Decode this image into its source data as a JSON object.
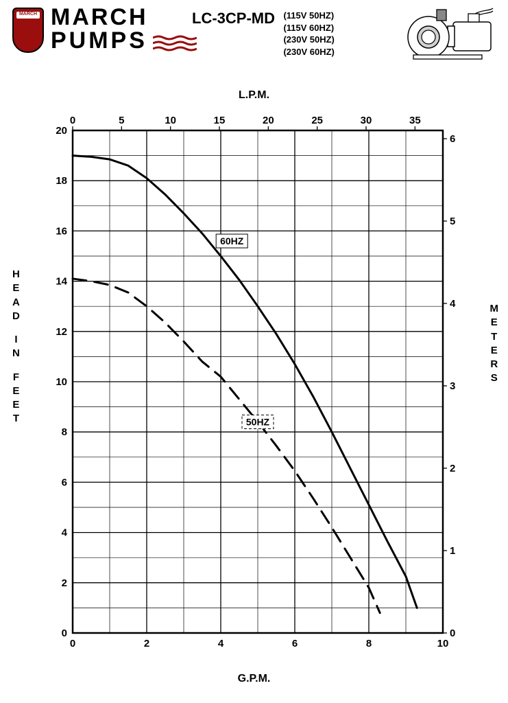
{
  "brand": {
    "line1": "MARCH",
    "line2": "PUMPS",
    "badge_label": "MARCH",
    "wave_color": "#9a0e0e",
    "badge_color": "#9a0e0e"
  },
  "model": "LC-3CP-MD",
  "variants": [
    "(115V 50HZ)",
    "(115V 60HZ)",
    "(230V 50HZ)",
    "(230V 60HZ)"
  ],
  "chart": {
    "type": "line",
    "background_color": "#ffffff",
    "border_color": "#000000",
    "grid_major_color": "#000000",
    "grid_minor_color": "#000000",
    "x_bottom": {
      "label": "G.P.M.",
      "min": 0,
      "max": 10,
      "major_step": 2,
      "minor_step": 1,
      "ticks": [
        0,
        2,
        4,
        6,
        8,
        10
      ],
      "label_fontsize": 16
    },
    "x_top": {
      "label": "L.P.M.",
      "min": 0,
      "max": 37.85,
      "ticks": [
        0,
        5,
        10,
        15,
        20,
        25,
        30,
        35
      ],
      "label_fontsize": 16
    },
    "y_left": {
      "label": "HEAD IN FEET",
      "min": 0,
      "max": 20,
      "major_step": 2,
      "minor_step": 1,
      "ticks": [
        0,
        2,
        4,
        6,
        8,
        10,
        12,
        14,
        16,
        18,
        20
      ],
      "label_fontsize": 15
    },
    "y_right": {
      "label": "METERS",
      "min": 0,
      "max": 6.1,
      "ticks": [
        0,
        1,
        2,
        3,
        4,
        5,
        6
      ],
      "label_fontsize": 15
    },
    "series": [
      {
        "name": "60HZ",
        "line_style": "solid",
        "line_width": 3.0,
        "color": "#000000",
        "label_box_style": "solid",
        "label_pos_gpm": 4.3,
        "label_pos_feet": 15.6,
        "points_gpm_feet": [
          [
            0.0,
            19.0
          ],
          [
            0.5,
            18.95
          ],
          [
            1.0,
            18.85
          ],
          [
            1.5,
            18.6
          ],
          [
            2.0,
            18.1
          ],
          [
            2.5,
            17.45
          ],
          [
            3.0,
            16.7
          ],
          [
            3.5,
            15.9
          ],
          [
            4.0,
            15.0
          ],
          [
            4.5,
            14.05
          ],
          [
            5.0,
            13.0
          ],
          [
            5.5,
            11.9
          ],
          [
            6.0,
            10.7
          ],
          [
            6.5,
            9.4
          ],
          [
            7.0,
            8.0
          ],
          [
            7.5,
            6.55
          ],
          [
            8.0,
            5.1
          ],
          [
            8.5,
            3.65
          ],
          [
            9.0,
            2.25
          ],
          [
            9.3,
            1.0
          ]
        ]
      },
      {
        "name": "50HZ",
        "line_style": "dashed",
        "line_width": 3.0,
        "dash_pattern": "20 12",
        "color": "#000000",
        "label_box_style": "dashed",
        "label_pos_gpm": 5.0,
        "label_pos_feet": 8.4,
        "points_gpm_feet": [
          [
            0.0,
            14.1
          ],
          [
            0.5,
            14.0
          ],
          [
            1.0,
            13.85
          ],
          [
            1.5,
            13.55
          ],
          [
            2.0,
            13.0
          ],
          [
            2.5,
            12.35
          ],
          [
            3.0,
            11.6
          ],
          [
            3.5,
            10.8
          ],
          [
            4.0,
            10.2
          ],
          [
            4.5,
            9.3
          ],
          [
            5.0,
            8.4
          ],
          [
            5.5,
            7.45
          ],
          [
            6.0,
            6.45
          ],
          [
            6.5,
            5.35
          ],
          [
            7.0,
            4.2
          ],
          [
            7.5,
            3.0
          ],
          [
            8.0,
            1.8
          ],
          [
            8.3,
            0.8
          ]
        ]
      }
    ]
  }
}
